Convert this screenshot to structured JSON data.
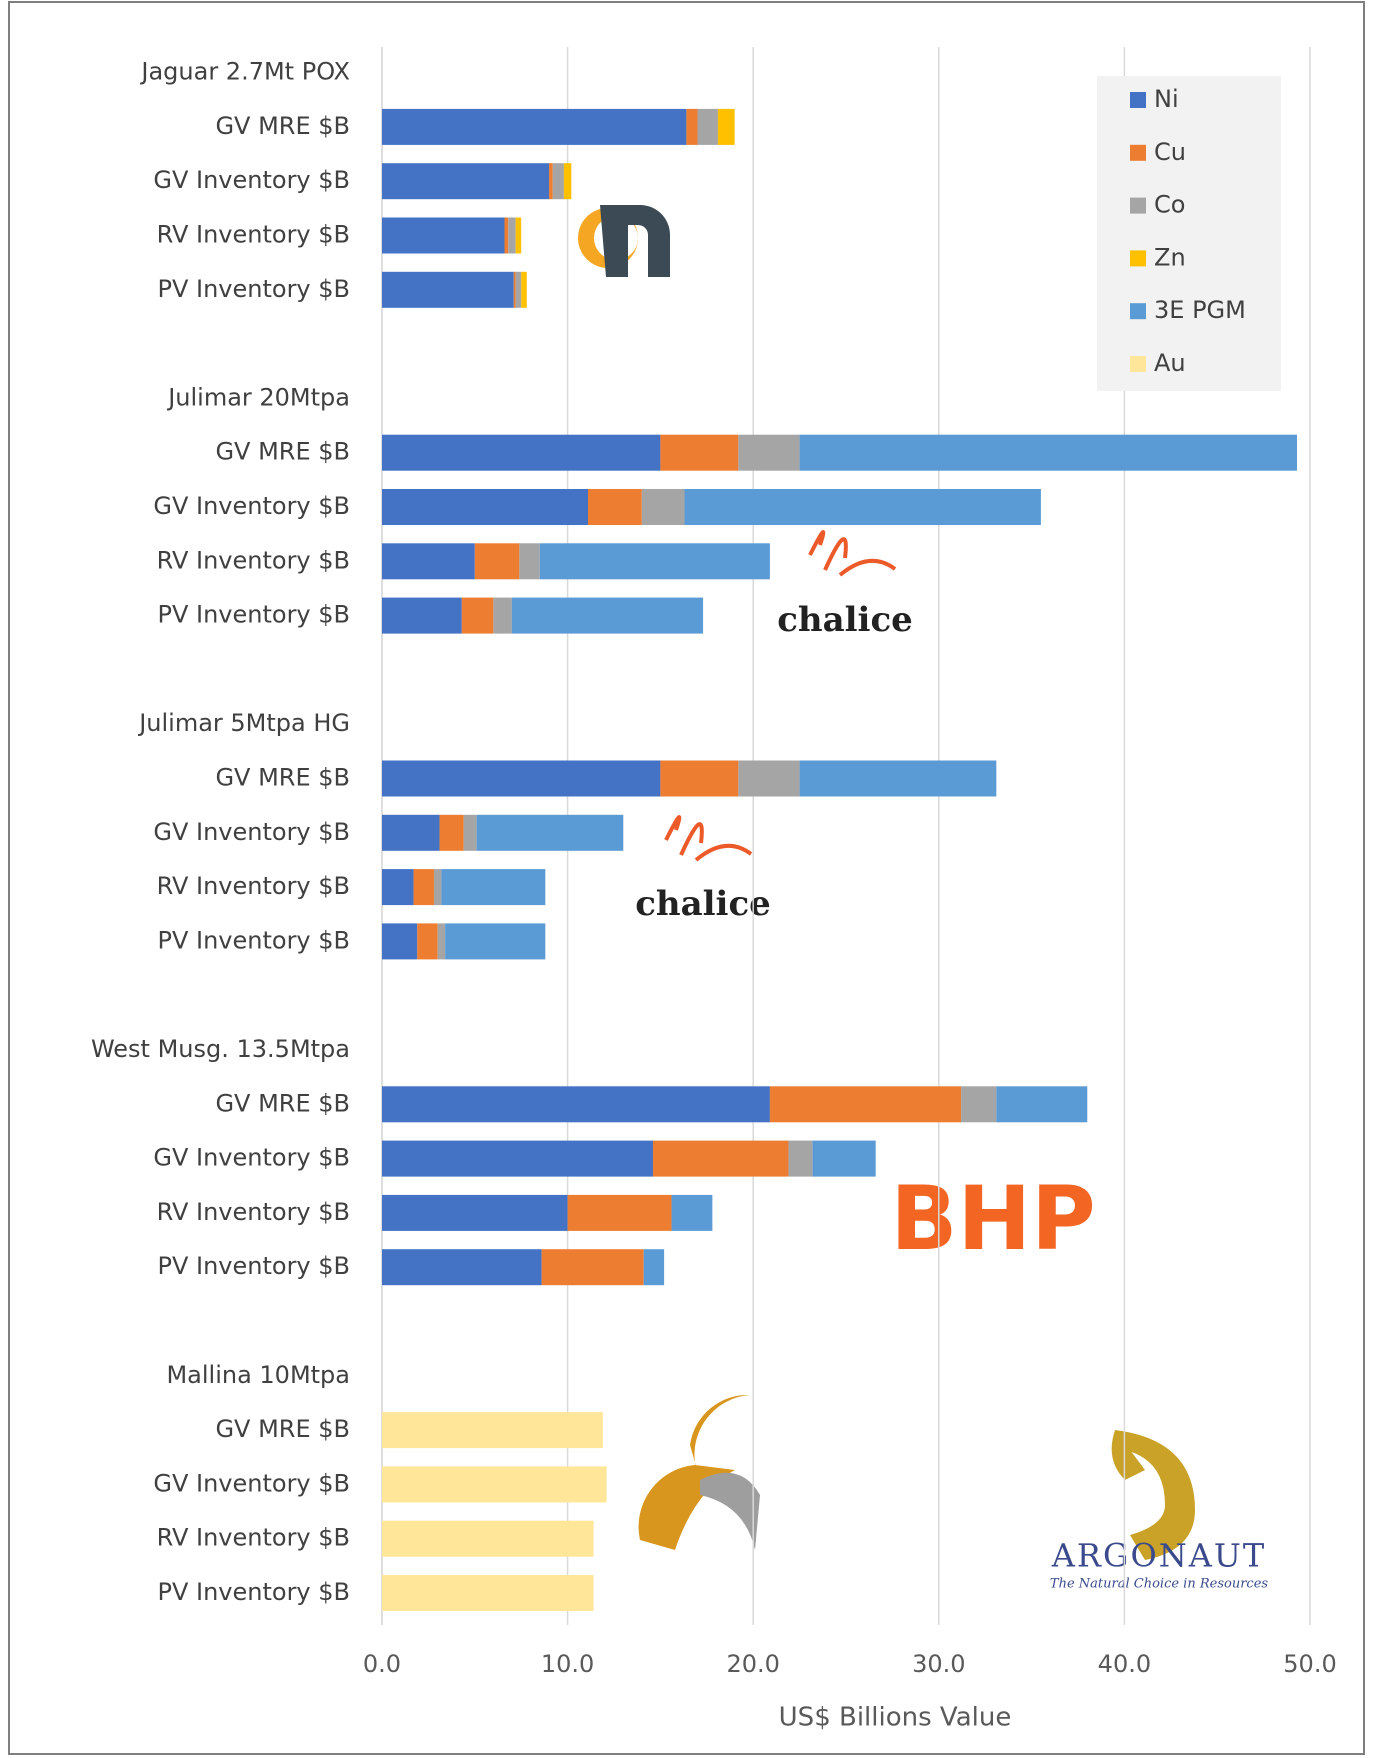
{
  "chart_data": {
    "type": "stacked_barh",
    "categories": [
      "Jaguar 2.7Mt POX",
      "GV MRE $B",
      "GV Inventory $B",
      "RV Inventory $B",
      "PV Inventory $B",
      null,
      "Julimar 20Mtpa",
      "GV MRE $B",
      "GV Inventory $B",
      "RV Inventory $B",
      "PV Inventory $B",
      null,
      "Julimar 5Mtpa HG",
      "GV MRE $B",
      "GV Inventory $B",
      "RV Inventory $B",
      "PV Inventory $B",
      null,
      "West Musg. 13.5Mtpa",
      "GV MRE $B",
      "GV Inventory $B",
      "RV Inventory $B",
      "PV Inventory $B",
      null,
      "Mallina 10Mtpa",
      "GV MRE $B",
      "GV Inventory $B",
      "RV Inventory $B",
      "PV Inventory $B"
    ],
    "series": [
      {
        "name": "Ni",
        "color": "#4472c4",
        "values": [
          null,
          16.4,
          9.0,
          6.6,
          7.1,
          null,
          null,
          15.0,
          11.1,
          5.0,
          4.3,
          null,
          null,
          15.0,
          3.1,
          1.7,
          1.9,
          null,
          null,
          20.9,
          14.6,
          10.0,
          8.6,
          null,
          null,
          null,
          null,
          null,
          null
        ]
      },
      {
        "name": "Cu",
        "color": "#ed7d31",
        "values": [
          null,
          0.6,
          0.2,
          0.2,
          0.1,
          null,
          null,
          4.2,
          2.9,
          2.4,
          1.7,
          null,
          null,
          4.2,
          1.3,
          1.1,
          1.1,
          null,
          null,
          10.3,
          7.3,
          5.6,
          5.5,
          null,
          null,
          null,
          null,
          null,
          null
        ]
      },
      {
        "name": "Co",
        "color": "#a5a5a5",
        "values": [
          null,
          1.1,
          0.6,
          0.4,
          0.3,
          null,
          null,
          3.3,
          2.3,
          1.1,
          1.0,
          null,
          null,
          3.3,
          0.7,
          0.4,
          0.4,
          null,
          null,
          1.9,
          1.3,
          null,
          null,
          null,
          null,
          null,
          null,
          null,
          null
        ]
      },
      {
        "name": "Zn",
        "color": "#ffc000",
        "values": [
          null,
          0.9,
          0.4,
          0.3,
          0.3,
          null,
          null,
          null,
          null,
          null,
          null,
          null,
          null,
          null,
          null,
          null,
          null,
          null,
          null,
          null,
          null,
          null,
          null,
          null,
          null,
          null,
          null,
          null,
          null
        ]
      },
      {
        "name": "3E PGM",
        "color": "#5b9bd5",
        "values": [
          null,
          null,
          null,
          null,
          null,
          null,
          null,
          26.8,
          19.2,
          12.4,
          10.3,
          null,
          null,
          10.6,
          7.9,
          5.6,
          5.4,
          null,
          null,
          4.9,
          3.4,
          2.2,
          1.1,
          null,
          null,
          null,
          null,
          null,
          null
        ]
      },
      {
        "name": "Au",
        "color": "#ffe699",
        "values": [
          null,
          null,
          null,
          null,
          null,
          null,
          null,
          null,
          null,
          null,
          null,
          null,
          null,
          null,
          null,
          null,
          null,
          null,
          null,
          null,
          null,
          null,
          null,
          null,
          null,
          11.9,
          12.1,
          11.4,
          11.4
        ]
      }
    ],
    "xlim": [
      0,
      50
    ],
    "xticks": [
      {
        "value": 0,
        "label": "0.0"
      },
      {
        "value": 10,
        "label": "10.0"
      },
      {
        "value": 20,
        "label": "20.0"
      },
      {
        "value": 30,
        "label": "30.0"
      },
      {
        "value": 40,
        "label": "40.0"
      },
      {
        "value": 50,
        "label": "50.0"
      }
    ],
    "x_label": "US$ Billions Value",
    "grid": true,
    "legend": "upper right",
    "logos": [
      "chalice",
      "chalice",
      "BHP",
      "ARGONAUT",
      "The Natural Choice in Resources"
    ]
  }
}
